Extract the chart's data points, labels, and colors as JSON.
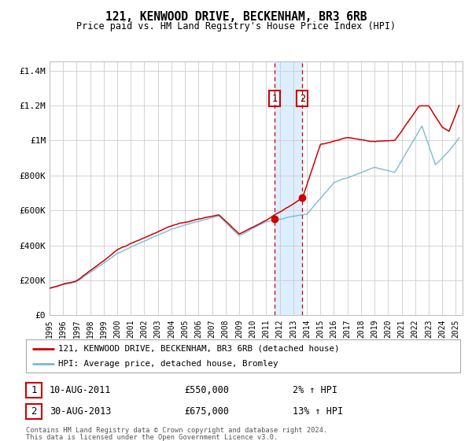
{
  "title": "121, KENWOOD DRIVE, BECKENHAM, BR3 6RB",
  "subtitle": "Price paid vs. HM Land Registry's House Price Index (HPI)",
  "legend_line1": "121, KENWOOD DRIVE, BECKENHAM, BR3 6RB (detached house)",
  "legend_line2": "HPI: Average price, detached house, Bromley",
  "annotation1_label": "1",
  "annotation1_date": "10-AUG-2011",
  "annotation1_price": "£550,000",
  "annotation1_hpi": "2% ↑ HPI",
  "annotation2_label": "2",
  "annotation2_date": "30-AUG-2013",
  "annotation2_price": "£675,000",
  "annotation2_hpi": "13% ↑ HPI",
  "footnote1": "Contains HM Land Registry data © Crown copyright and database right 2024.",
  "footnote2": "This data is licensed under the Open Government Licence v3.0.",
  "sale1_year": 2011.6,
  "sale1_price": 550000,
  "sale2_year": 2013.67,
  "sale2_price": 675000,
  "hpi_color": "#7ab8d9",
  "price_color": "#cc0000",
  "sale_dot_color": "#cc0000",
  "vline_color": "#cc0000",
  "shade_color": "#ddeeff",
  "grid_color": "#cccccc",
  "background_color": "#ffffff",
  "ylim": [
    0,
    1450000
  ],
  "xlim_start": 1995.0,
  "xlim_end": 2025.5,
  "yticks": [
    0,
    200000,
    400000,
    600000,
    800000,
    1000000,
    1200000,
    1400000
  ],
  "ytick_labels": [
    "£0",
    "£200K",
    "£400K",
    "£600K",
    "£800K",
    "£1M",
    "£1.2M",
    "£1.4M"
  ],
  "xtick_years": [
    1995,
    1996,
    1997,
    1998,
    1999,
    2000,
    2001,
    2002,
    2003,
    2004,
    2005,
    2006,
    2007,
    2008,
    2009,
    2010,
    2011,
    2012,
    2013,
    2014,
    2015,
    2016,
    2017,
    2018,
    2019,
    2020,
    2021,
    2022,
    2023,
    2024,
    2025
  ]
}
